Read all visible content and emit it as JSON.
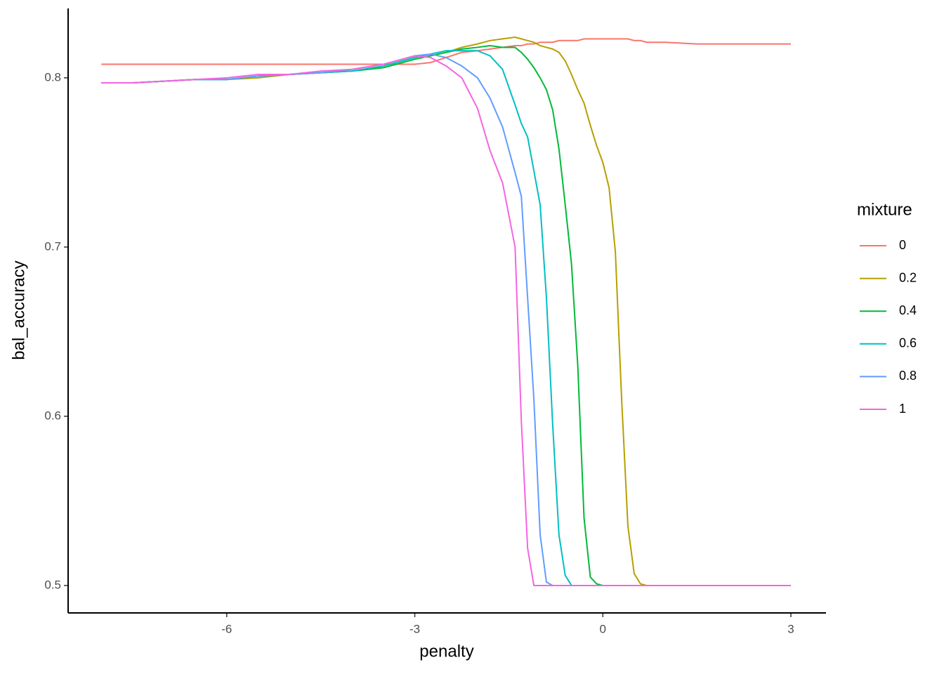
{
  "chart_data": {
    "type": "line",
    "xlabel": "penalty",
    "ylabel": "bal_accuracy",
    "legend_title": "mixture",
    "legend": "right",
    "xlim": [
      -8.53,
      3.56
    ],
    "ylim": [
      0.4838,
      0.841
    ],
    "xticks": [
      -6,
      -3,
      0,
      3
    ],
    "yticks": [
      0.5,
      0.6,
      0.7,
      0.8
    ],
    "grid": false,
    "x": [
      -8,
      -7.5,
      -7,
      -6.5,
      -6,
      -5.5,
      -5,
      -4.5,
      -4,
      -3.5,
      -3,
      -2.75,
      -2.5,
      -2.25,
      -2,
      -1.8,
      -1.6,
      -1.4,
      -1.3,
      -1.2,
      -1.1,
      -1,
      -0.9,
      -0.8,
      -0.7,
      -0.6,
      -0.5,
      -0.4,
      -0.3,
      -0.2,
      -0.1,
      0,
      0.1,
      0.2,
      0.3,
      0.4,
      0.5,
      0.6,
      0.7,
      1,
      1.5,
      2,
      2.5,
      3
    ],
    "series": [
      {
        "name": "0",
        "color": "#F8766D",
        "values": [
          0.808,
          0.808,
          0.808,
          0.808,
          0.808,
          0.808,
          0.808,
          0.808,
          0.808,
          0.808,
          0.808,
          0.809,
          0.812,
          0.815,
          0.816,
          0.817,
          0.818,
          0.819,
          0.819,
          0.82,
          0.82,
          0.821,
          0.821,
          0.821,
          0.822,
          0.822,
          0.822,
          0.822,
          0.823,
          0.823,
          0.823,
          0.823,
          0.823,
          0.823,
          0.823,
          0.823,
          0.822,
          0.822,
          0.821,
          0.821,
          0.82,
          0.82,
          0.82,
          0.82
        ]
      },
      {
        "name": "0.2",
        "color": "#B79F00",
        "values": [
          0.797,
          0.797,
          0.798,
          0.799,
          0.799,
          0.8,
          0.802,
          0.803,
          0.804,
          0.806,
          0.811,
          0.813,
          0.815,
          0.818,
          0.82,
          0.822,
          0.823,
          0.824,
          0.823,
          0.822,
          0.821,
          0.819,
          0.818,
          0.817,
          0.815,
          0.81,
          0.802,
          0.793,
          0.785,
          0.772,
          0.76,
          0.75,
          0.735,
          0.697,
          0.61,
          0.535,
          0.507,
          0.501,
          0.5,
          0.5,
          0.5,
          0.5,
          0.5,
          0.5
        ]
      },
      {
        "name": "0.4",
        "color": "#00BA38",
        "values": [
          0.797,
          0.797,
          0.798,
          0.799,
          0.799,
          0.801,
          0.802,
          0.803,
          0.804,
          0.806,
          0.811,
          0.813,
          0.815,
          0.817,
          0.818,
          0.819,
          0.818,
          0.818,
          0.815,
          0.811,
          0.806,
          0.8,
          0.793,
          0.781,
          0.758,
          0.725,
          0.69,
          0.63,
          0.54,
          0.505,
          0.501,
          0.5,
          0.5,
          0.5,
          0.5,
          0.5,
          0.5,
          0.5,
          0.5,
          0.5,
          0.5,
          0.5,
          0.5,
          0.5
        ]
      },
      {
        "name": "0.6",
        "color": "#00BFC4",
        "values": [
          0.797,
          0.797,
          0.798,
          0.799,
          0.799,
          0.801,
          0.802,
          0.803,
          0.804,
          0.807,
          0.812,
          0.814,
          0.816,
          0.816,
          0.816,
          0.813,
          0.805,
          0.784,
          0.773,
          0.765,
          0.745,
          0.725,
          0.67,
          0.595,
          0.53,
          0.506,
          0.5,
          0.5,
          0.5,
          0.5,
          0.5,
          0.5,
          0.5,
          0.5,
          0.5,
          0.5,
          0.5,
          0.5,
          0.5,
          0.5,
          0.5,
          0.5,
          0.5,
          0.5
        ]
      },
      {
        "name": "0.8",
        "color": "#619CFF",
        "values": [
          0.797,
          0.797,
          0.798,
          0.799,
          0.799,
          0.801,
          0.802,
          0.803,
          0.805,
          0.808,
          0.813,
          0.814,
          0.812,
          0.807,
          0.8,
          0.788,
          0.771,
          0.744,
          0.73,
          0.67,
          0.61,
          0.53,
          0.502,
          0.5,
          0.5,
          0.5,
          0.5,
          0.5,
          0.5,
          0.5,
          0.5,
          0.5,
          0.5,
          0.5,
          0.5,
          0.5,
          0.5,
          0.5,
          0.5,
          0.5,
          0.5,
          0.5,
          0.5,
          0.5
        ]
      },
      {
        "name": "1",
        "color": "#F564E3",
        "values": [
          0.797,
          0.797,
          0.798,
          0.799,
          0.8,
          0.802,
          0.802,
          0.804,
          0.805,
          0.808,
          0.813,
          0.812,
          0.807,
          0.8,
          0.782,
          0.757,
          0.738,
          0.7,
          0.597,
          0.522,
          0.5,
          0.5,
          0.5,
          0.5,
          0.5,
          0.5,
          0.5,
          0.5,
          0.5,
          0.5,
          0.5,
          0.5,
          0.5,
          0.5,
          0.5,
          0.5,
          0.5,
          0.5,
          0.5,
          0.5,
          0.5,
          0.5,
          0.5,
          0.5
        ]
      }
    ]
  }
}
